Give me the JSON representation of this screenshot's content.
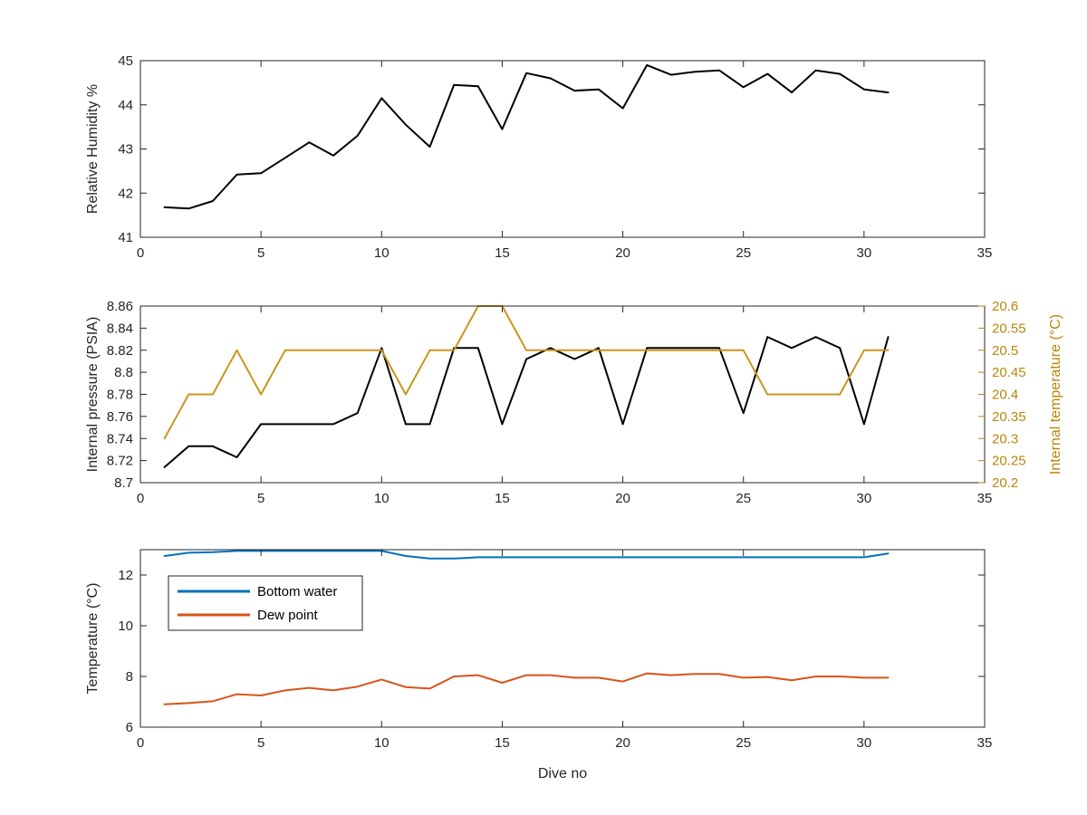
{
  "chart_data": [
    {
      "type": "line",
      "title": "",
      "xlabel": "",
      "ylabel": "Relative Humidity %",
      "xlim": [
        0,
        35
      ],
      "ylim": [
        41,
        45
      ],
      "xticks": [
        0,
        5,
        10,
        15,
        20,
        25,
        30,
        35
      ],
      "yticks": [
        41,
        42,
        43,
        44,
        45
      ],
      "grid": false,
      "series": [
        {
          "name": "",
          "color": "#000000",
          "x": [
            1,
            2,
            3,
            4,
            5,
            6,
            7,
            8,
            9,
            10,
            11,
            12,
            13,
            14,
            15,
            16,
            17,
            18,
            19,
            20,
            21,
            22,
            23,
            24,
            25,
            26,
            27,
            28,
            29,
            30,
            31
          ],
          "y": [
            41.68,
            41.65,
            41.82,
            42.42,
            42.45,
            42.8,
            43.15,
            42.85,
            43.3,
            44.15,
            43.55,
            43.05,
            44.45,
            44.42,
            43.45,
            44.72,
            44.6,
            44.32,
            44.35,
            43.92,
            44.9,
            44.68,
            44.75,
            44.78,
            44.4,
            44.7,
            44.28,
            44.78,
            44.7,
            44.35,
            44.28
          ]
        }
      ]
    },
    {
      "type": "line",
      "title": "",
      "xlabel": "",
      "ylabel": "Internal pressure (PSIA)",
      "y2label": "Internal temperature (°C)",
      "xlim": [
        0,
        35
      ],
      "ylim": [
        8.7,
        8.86
      ],
      "y2lim": [
        20.2,
        20.6
      ],
      "xticks": [
        0,
        5,
        10,
        15,
        20,
        25,
        30,
        35
      ],
      "yticks": [
        8.7,
        8.72,
        8.74,
        8.76,
        8.78,
        8.8,
        8.82,
        8.84,
        8.86
      ],
      "y2ticks": [
        20.2,
        20.25,
        20.3,
        20.35,
        20.4,
        20.45,
        20.5,
        20.55,
        20.6
      ],
      "grid": false,
      "series": [
        {
          "name": "",
          "axis": "left",
          "color": "#000000",
          "x": [
            1,
            2,
            3,
            4,
            5,
            6,
            7,
            8,
            9,
            10,
            11,
            12,
            13,
            14,
            15,
            16,
            17,
            18,
            19,
            20,
            21,
            22,
            23,
            24,
            25,
            26,
            27,
            28,
            29,
            30,
            31
          ],
          "y": [
            8.714,
            8.733,
            8.733,
            8.723,
            8.753,
            8.753,
            8.753,
            8.753,
            8.763,
            8.822,
            8.753,
            8.753,
            8.822,
            8.822,
            8.753,
            8.812,
            8.822,
            8.812,
            8.822,
            8.753,
            8.822,
            8.822,
            8.822,
            8.822,
            8.763,
            8.832,
            8.822,
            8.832,
            8.822,
            8.753,
            8.832
          ]
        },
        {
          "name": "",
          "axis": "right",
          "color": "#c8961e",
          "x": [
            1,
            2,
            3,
            4,
            5,
            6,
            7,
            8,
            9,
            10,
            11,
            12,
            13,
            14,
            15,
            16,
            17,
            18,
            19,
            20,
            21,
            22,
            23,
            24,
            25,
            26,
            27,
            28,
            29,
            30,
            31
          ],
          "y": [
            20.3,
            20.4,
            20.4,
            20.5,
            20.4,
            20.5,
            20.5,
            20.5,
            20.5,
            20.5,
            20.4,
            20.5,
            20.5,
            20.6,
            20.6,
            20.5,
            20.5,
            20.5,
            20.5,
            20.5,
            20.5,
            20.5,
            20.5,
            20.5,
            20.5,
            20.4,
            20.4,
            20.4,
            20.4,
            20.5,
            20.5
          ]
        }
      ]
    },
    {
      "type": "line",
      "title": "",
      "xlabel": "Dive no",
      "ylabel": "Temperature (°C)",
      "xlim": [
        0,
        35
      ],
      "ylim": [
        6,
        13
      ],
      "xticks": [
        0,
        5,
        10,
        15,
        20,
        25,
        30,
        35
      ],
      "yticks": [
        6,
        8,
        10,
        12
      ],
      "grid": false,
      "legend": "upper-left",
      "series": [
        {
          "name": "Bottom water",
          "color": "#0072bd",
          "x": [
            1,
            2,
            3,
            4,
            5,
            6,
            7,
            8,
            9,
            10,
            11,
            12,
            13,
            14,
            15,
            16,
            17,
            18,
            19,
            20,
            21,
            22,
            23,
            24,
            25,
            26,
            27,
            28,
            29,
            30,
            31
          ],
          "y": [
            12.75,
            12.88,
            12.9,
            12.95,
            12.95,
            12.95,
            12.95,
            12.95,
            12.95,
            12.95,
            12.75,
            12.65,
            12.65,
            12.7,
            12.7,
            12.7,
            12.7,
            12.7,
            12.7,
            12.7,
            12.7,
            12.7,
            12.7,
            12.7,
            12.7,
            12.7,
            12.7,
            12.7,
            12.7,
            12.7,
            12.85
          ]
        },
        {
          "name": "Dew point",
          "color": "#d95319",
          "x": [
            1,
            2,
            3,
            4,
            5,
            6,
            7,
            8,
            9,
            10,
            11,
            12,
            13,
            14,
            15,
            16,
            17,
            18,
            19,
            20,
            21,
            22,
            23,
            24,
            25,
            26,
            27,
            28,
            29,
            30,
            31
          ],
          "y": [
            6.9,
            6.95,
            7.02,
            7.3,
            7.25,
            7.45,
            7.55,
            7.45,
            7.6,
            7.88,
            7.58,
            7.52,
            8.0,
            8.05,
            7.75,
            8.05,
            8.05,
            7.95,
            7.95,
            7.8,
            8.12,
            8.05,
            8.1,
            8.1,
            7.95,
            7.98,
            7.85,
            8.0,
            8.0,
            7.95,
            7.95
          ]
        }
      ]
    }
  ]
}
